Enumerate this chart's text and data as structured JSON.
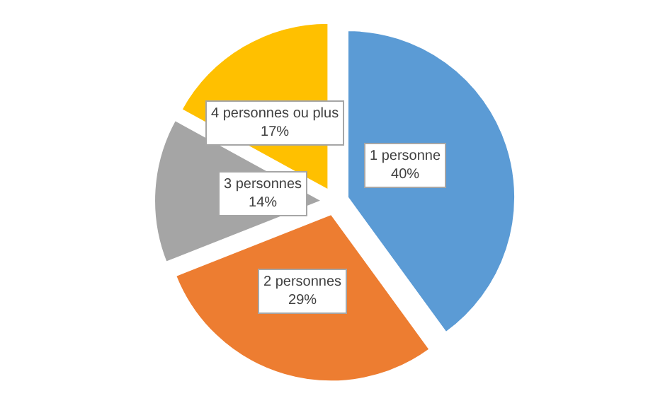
{
  "chart_data": {
    "type": "pie",
    "categories": [
      "1 personne",
      "2 personnes",
      "3 personnes",
      "4 personnes ou plus"
    ],
    "values": [
      40,
      29,
      14,
      17
    ],
    "value_labels": [
      "40%",
      "29%",
      "14%",
      "17%"
    ],
    "colors": [
      "#5b9bd5",
      "#ed7d31",
      "#a5a5a5",
      "#ffc000"
    ],
    "legend": false
  }
}
